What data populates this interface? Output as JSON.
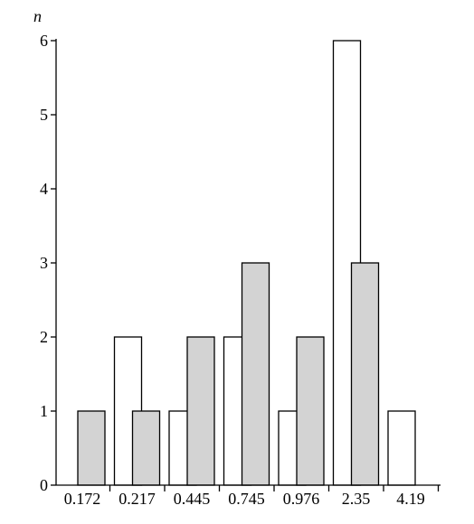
{
  "chart_data": {
    "type": "bar",
    "title": "",
    "xlabel": "",
    "ylabel": "n",
    "categories": [
      "0.172",
      "0.217",
      "0.445",
      "0.745",
      "0.976",
      "2.35",
      "4.19"
    ],
    "series": [
      {
        "color": "#ffffff",
        "values": [
          0,
          2,
          1,
          2,
          1,
          6,
          1
        ]
      },
      {
        "color": "#d3d3d3",
        "values": [
          1,
          1,
          2,
          3,
          2,
          3,
          0
        ]
      }
    ],
    "ylim": [
      0,
      6
    ],
    "yticks": [
      "0",
      "1",
      "2",
      "3",
      "4",
      "5",
      "6"
    ],
    "grid": false,
    "legend": "none"
  }
}
